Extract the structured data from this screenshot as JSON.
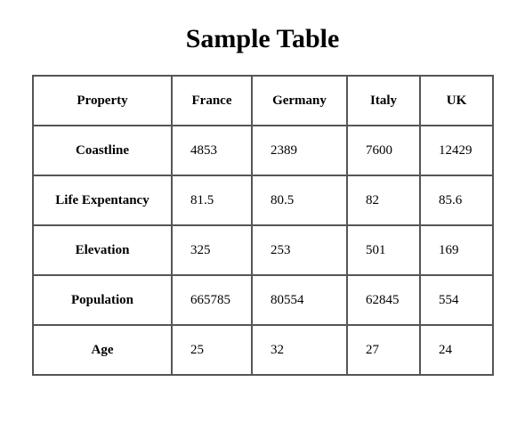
{
  "title": "Sample Table",
  "table": {
    "headers": [
      "Property",
      "France",
      "Germany",
      "Italy",
      "UK"
    ],
    "rows": [
      {
        "label": "Coastline",
        "values": [
          "4853",
          "2389",
          "7600",
          "12429"
        ]
      },
      {
        "label": "Life Expentancy",
        "values": [
          "81.5",
          "80.5",
          "82",
          "85.6"
        ]
      },
      {
        "label": "Elevation",
        "values": [
          "325",
          "253",
          "501",
          "169"
        ]
      },
      {
        "label": "Population",
        "values": [
          "665785",
          "80554",
          "62845",
          "554"
        ]
      },
      {
        "label": "Age",
        "values": [
          "25",
          "32",
          "27",
          "24"
        ]
      }
    ]
  }
}
